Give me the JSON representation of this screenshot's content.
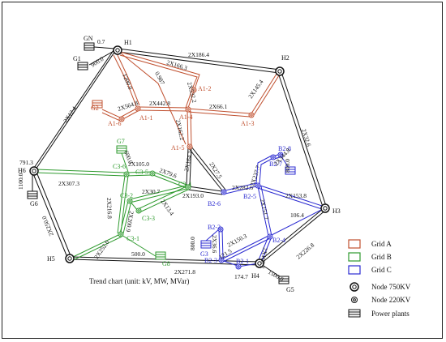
{
  "colors": {
    "backbone": "#111111",
    "grid_a": "#c0502f",
    "grid_b": "#2e9a2e",
    "grid_c": "#2b2bd1"
  },
  "caption": "Trend chart (unit: kV, MW, MVar)",
  "legend": [
    {
      "key": "grid_a",
      "label": "Grid A",
      "icon": "swatch-icon"
    },
    {
      "key": "grid_b",
      "label": "Grid B",
      "icon": "swatch-icon"
    },
    {
      "key": "grid_c",
      "label": "Grid C",
      "icon": "swatch-icon"
    },
    {
      "key": "node750",
      "label": "Node 750KV",
      "icon": "node-750kv-icon"
    },
    {
      "key": "node220",
      "label": "Node 220KV",
      "icon": "node-220kv-icon"
    },
    {
      "key": "plant",
      "label": "Power plants",
      "icon": "power-plant-icon"
    }
  ],
  "nodes": {
    "H1": "H1",
    "H2": "H2",
    "H3": "H3",
    "H4": "H4",
    "H5": "H5",
    "H6": "H6",
    "A1_1": "A1-1",
    "A1_2": "A1-2",
    "A1_3": "A1-3",
    "A1_4": "A1-4",
    "A1_5": "A1-5",
    "A1_6": "A1-6",
    "B2_1": "B2-1",
    "B2_2": "B2-2",
    "B2_3": "B2-3",
    "B2_4": "B2-4",
    "B2_5": "B2-5",
    "B2_6": "B2-6",
    "B2_7": "B2-7",
    "B2_8": "B2-8",
    "C3_1": "C3-1",
    "C3_2": "C3-2",
    "C3_3": "C3-3",
    "C3_4": "C3-4",
    "C3_5": "C3-5",
    "C3_6": "C3-6"
  },
  "plants": {
    "GN": "GN",
    "G1": "G1",
    "G2": "G2",
    "G3": "G3",
    "G5": "G5",
    "G6": "G6",
    "G7": "G7",
    "G8": "G8"
  },
  "values": {
    "gn_h1": "0.7",
    "g1_h1": "900.0",
    "h6_v": "791.3",
    "h6_g6": "1100.0",
    "h4_g5": "1500.0",
    "h1_h2": "2X186.4",
    "h2_h3": "2X32.6",
    "h3_h4": "2X226.8",
    "h4_h5": "2X271.8",
    "h5_h6": "2X250.0",
    "h6_h1": "2X12.4",
    "a_h1_a12": "2X166.3",
    "a_h1_a11": "1200.0",
    "a_a11_a14": "2X442.8",
    "a_a12_a14": "2X532.2",
    "a_a14_a13": "2X66.1",
    "a_a13_h2": "2X145.4",
    "a_g2_a11": "2X564.8",
    "a_h1_a15": "0.987",
    "a_a14_a15": "2X162.2",
    "a_a15_b26": "2X27.5",
    "a_a15_c34": "2X164.1",
    "c_c34_b26": "2X193.0",
    "c_c34_c35": "2X79.6",
    "c_c35_c36": "2X105.0",
    "c_g7": "600.0",
    "c_h6_c36": "2X307.3",
    "c_c36_c32": "2X216.8",
    "c_c32_c34": "2X30.7",
    "c_c33_c34": "2X13.4",
    "c_c32_c31": "2X200.9",
    "c_c31_g8": "500.0",
    "c_h5_c31": "2X252.0",
    "b_b26_b25": "2X282.6",
    "b_b25_b27": "2X237.7",
    "b_b27_b28": "2X344.8",
    "b_b28_g": "800.0",
    "b_b25_h3": "2X153.8",
    "b_b25_b24": "2X151.7",
    "b_h3_b24": "106.4",
    "b_b24_b23": "2X150.3",
    "b_b22_b23": "2X36.6",
    "b_g3": "800.0",
    "b_b23_b21": "121.5",
    "b_b21_h4": "174.7",
    "b_b24_h4": "2X163.7"
  }
}
